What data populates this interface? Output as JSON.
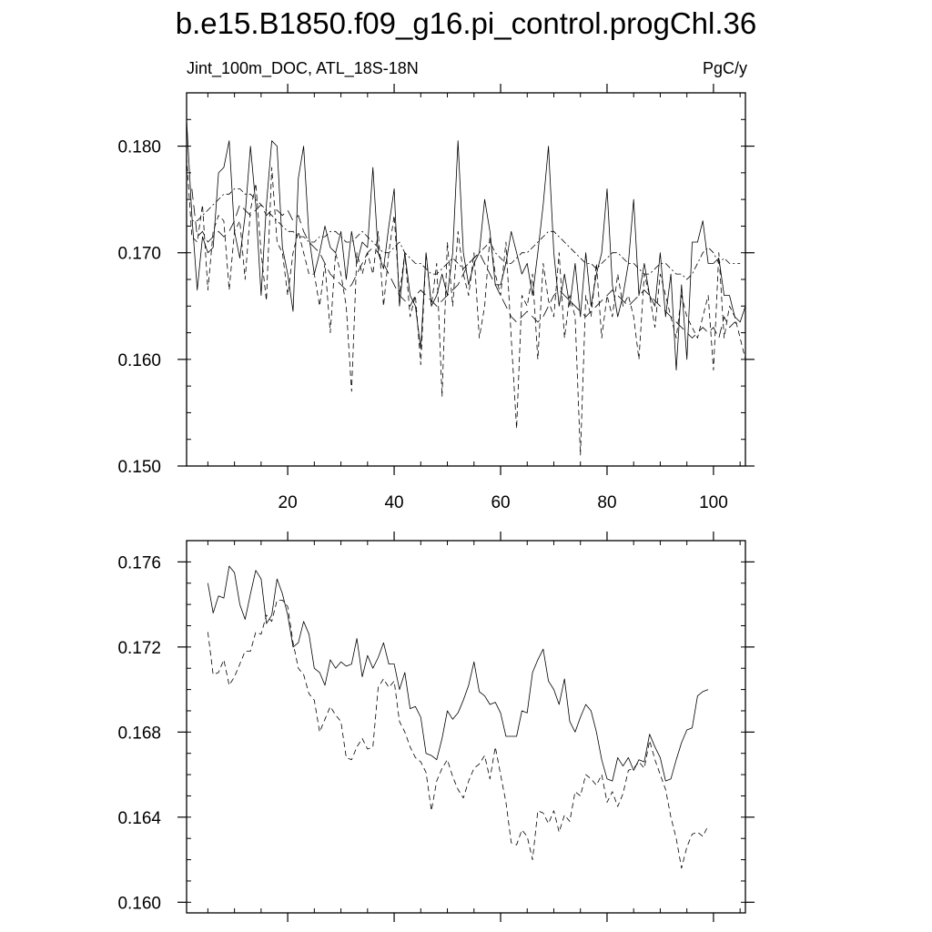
{
  "title": "b.e15.B1850.f09_g16.pi_control.progChl.36",
  "left_label": "Jint_100m_DOC, ATL_18S-18N",
  "right_label": "PgC/y",
  "chart_data": [
    {
      "type": "line",
      "xlim": [
        1,
        106
      ],
      "ylim": [
        0.15,
        0.185
      ],
      "x_ticks": [
        20,
        40,
        60,
        80,
        100
      ],
      "y_ticks": [
        0.15,
        0.16,
        0.17,
        0.18
      ],
      "y_tick_labels": [
        "0.150",
        "0.160",
        "0.170",
        "0.180"
      ],
      "x_tick_labels": [
        "20",
        "40",
        "60",
        "80",
        "100"
      ],
      "grid": false,
      "series": [
        {
          "style": "solid",
          "x_start": 1,
          "values": [
            0.1825,
            0.1735,
            0.1665,
            0.1715,
            0.17,
            0.1705,
            0.1775,
            0.178,
            0.1805,
            0.172,
            0.1695,
            0.1735,
            0.18,
            0.1745,
            0.166,
            0.1745,
            0.1805,
            0.18,
            0.1705,
            0.168,
            0.1645,
            0.177,
            0.18,
            0.1715,
            0.168,
            0.17,
            0.1725,
            0.1705,
            0.17,
            0.172,
            0.1675,
            0.172,
            0.169,
            0.171,
            0.1705,
            0.178,
            0.17,
            0.1685,
            0.1725,
            0.176,
            0.165,
            0.17,
            0.166,
            0.165,
            0.161,
            0.17,
            0.165,
            0.166,
            0.168,
            0.166,
            0.17,
            0.1805,
            0.17,
            0.167,
            0.169,
            0.17,
            0.175,
            0.172,
            0.167,
            0.167,
            0.169,
            0.172,
            0.17,
            0.168,
            0.169,
            0.166,
            0.17,
            0.1745,
            0.18,
            0.17,
            0.165,
            0.168,
            0.165,
            0.169,
            0.164,
            0.17,
            0.165,
            0.168,
            0.17,
            0.176,
            0.167,
            0.164,
            0.166,
            0.169,
            0.175,
            0.166,
            0.169,
            0.166,
            0.165,
            0.17,
            0.164,
            0.168,
            0.159,
            0.167,
            0.16,
            0.171,
            0.171,
            0.173,
            0.169,
            0.169,
            0.1695,
            0.166,
            0.166,
            0.164,
            0.1635,
            0.165
          ]
        },
        {
          "style": "dashed",
          "x_start": 1,
          "values": [
            0.179,
            0.1715,
            0.171,
            0.1745,
            0.1665,
            0.172,
            0.1735,
            0.173,
            0.1665,
            0.172,
            0.173,
            0.1675,
            0.174,
            0.1765,
            0.17,
            0.1655,
            0.178,
            0.171,
            0.17,
            0.166,
            0.17,
            0.172,
            0.17,
            0.168,
            0.168,
            0.165,
            0.169,
            0.1625,
            0.17,
            0.168,
            0.165,
            0.157,
            0.17,
            0.168,
            0.17,
            0.168,
            0.172,
            0.165,
            0.17,
            0.1735,
            0.166,
            0.17,
            0.164,
            0.166,
            0.1595,
            0.17,
            0.165,
            0.169,
            0.1565,
            0.171,
            0.165,
            0.172,
            0.168,
            0.166,
            0.17,
            0.162,
            0.165,
            0.1715,
            0.168,
            0.166,
            0.171,
            0.162,
            0.1535,
            0.166,
            0.165,
            0.168,
            0.16,
            0.169,
            0.1655,
            0.164,
            0.17,
            0.162,
            0.166,
            0.164,
            0.151,
            0.166,
            0.164,
            0.169,
            0.162,
            0.166,
            0.164,
            0.168,
            0.165,
            0.166,
            0.164,
            0.16,
            0.168,
            0.166,
            0.163,
            0.168,
            0.166,
            0.164,
            0.162,
            0.166,
            0.164,
            0.163,
            0.162,
            0.164,
            0.166,
            0.159,
            0.17,
            0.162,
            0.165,
            0.164,
            0.162,
            0.16
          ]
        },
        {
          "style": "long-dash",
          "x_start": 2,
          "values": [
            0.176,
            0.1715,
            0.172,
            0.171,
            0.1715,
            0.172,
            0.1715,
            0.172,
            0.173,
            0.1745,
            0.174,
            0.1735,
            0.174,
            0.1745,
            0.1735,
            0.174,
            0.174,
            0.1735,
            0.174,
            0.173,
            0.1735,
            0.172,
            0.171,
            0.1705,
            0.17,
            0.169,
            0.168,
            0.1675,
            0.167,
            0.1665,
            0.167,
            0.168,
            0.169,
            0.17,
            0.1705,
            0.17,
            0.169,
            0.168,
            0.167,
            0.166,
            0.1655,
            0.165,
            0.166,
            0.1665,
            0.166,
            0.1655,
            0.165,
            0.1655,
            0.166,
            0.1665,
            0.167,
            0.168,
            0.169,
            0.1695,
            0.17,
            0.169,
            0.168,
            0.167,
            0.166,
            0.165,
            0.164,
            0.1635,
            0.164,
            0.1645,
            0.164,
            0.1635,
            0.164,
            0.165,
            0.166,
            0.1665,
            0.166,
            0.1655,
            0.165,
            0.1645,
            0.164,
            0.1645,
            0.165,
            0.1655,
            0.166,
            0.1665,
            0.166,
            0.1655,
            0.165,
            0.1655,
            0.166,
            0.1665,
            0.166,
            0.1655,
            0.165,
            0.1645,
            0.164,
            0.1635,
            0.163,
            0.1625,
            0.162,
            0.1625,
            0.163,
            0.1625,
            0.163,
            0.162,
            0.164,
            0.163,
            0.1635,
            0.163
          ]
        },
        {
          "style": "dash-dot",
          "x_start": 2,
          "values": [
            0.173,
            0.173,
            0.1735,
            0.174,
            0.1745,
            0.175,
            0.1755,
            0.1755,
            0.176,
            0.176,
            0.1755,
            0.1755,
            0.175,
            0.1745,
            0.174,
            0.1735,
            0.173,
            0.1725,
            0.172,
            0.172,
            0.1715,
            0.1715,
            0.171,
            0.171,
            0.1715,
            0.1715,
            0.172,
            0.172,
            0.1715,
            0.171,
            0.171,
            0.1715,
            0.172,
            0.1715,
            0.171,
            0.1705,
            0.17,
            0.17,
            0.1705,
            0.171,
            0.17,
            0.1695,
            0.169,
            0.169,
            0.1685,
            0.168,
            0.168,
            0.1685,
            0.169,
            0.1695,
            0.169,
            0.1685,
            0.169,
            0.1695,
            0.17,
            0.1705,
            0.171,
            0.17,
            0.1695,
            0.169,
            0.169,
            0.1695,
            0.17,
            0.17,
            0.1705,
            0.171,
            0.1715,
            0.172,
            0.172,
            0.1715,
            0.171,
            0.1705,
            0.17,
            0.1695,
            0.169,
            0.169,
            0.1685,
            0.169,
            0.1695,
            0.17,
            0.17,
            0.1695,
            0.169,
            0.169,
            0.1685,
            0.168,
            0.168,
            0.1685,
            0.169,
            0.169,
            0.1685,
            0.168,
            0.168,
            0.1675,
            0.168,
            0.169,
            0.17,
            0.1705,
            0.17,
            0.169,
            0.1695,
            0.169,
            0.169,
            0.169
          ]
        }
      ]
    },
    {
      "type": "line",
      "xlim": [
        1,
        106
      ],
      "ylim": [
        0.1595,
        0.177
      ],
      "x_ticks": [
        20,
        40,
        60,
        80,
        100
      ],
      "y_ticks": [
        0.16,
        0.164,
        0.168,
        0.172,
        0.176
      ],
      "y_tick_labels": [
        "0.160",
        "0.164",
        "0.168",
        "0.172",
        "0.176"
      ],
      "grid": false,
      "series": [
        {
          "style": "solid",
          "x_start": 5,
          "values": [
            0.175,
            0.1736,
            0.1744,
            0.1743,
            0.1758,
            0.1755,
            0.174,
            0.1733,
            0.1745,
            0.1756,
            0.1752,
            0.1731,
            0.1735,
            0.1752,
            0.1745,
            0.1735,
            0.172,
            0.1722,
            0.1732,
            0.1726,
            0.171,
            0.1708,
            0.1702,
            0.1714,
            0.171,
            0.1713,
            0.1711,
            0.1712,
            0.1724,
            0.1706,
            0.1716,
            0.171,
            0.1715,
            0.1722,
            0.1712,
            0.1712,
            0.17,
            0.1708,
            0.1691,
            0.1692,
            0.1687,
            0.167,
            0.1669,
            0.1667,
            0.1677,
            0.169,
            0.1686,
            0.1689,
            0.1695,
            0.1702,
            0.1713,
            0.1699,
            0.1697,
            0.1693,
            0.1694,
            0.1689,
            0.1678,
            0.1678,
            0.1678,
            0.169,
            0.1689,
            0.1708,
            0.1714,
            0.1719,
            0.1704,
            0.17,
            0.1693,
            0.1705,
            0.1685,
            0.168,
            0.1687,
            0.1693,
            0.169,
            0.168,
            0.1667,
            0.1658,
            0.1657,
            0.1668,
            0.1664,
            0.1668,
            0.1662,
            0.1667,
            0.1666,
            0.1679,
            0.1673,
            0.1668,
            0.1657,
            0.1658,
            0.1667,
            0.1675,
            0.1681,
            0.1682,
            0.1697,
            0.1699,
            0.17
          ]
        },
        {
          "style": "dashed",
          "x_start": 5,
          "values": [
            0.1727,
            0.1707,
            0.1708,
            0.1714,
            0.1702,
            0.1706,
            0.1712,
            0.1718,
            0.1718,
            0.1727,
            0.1726,
            0.1735,
            0.1732,
            0.1742,
            0.1742,
            0.1739,
            0.1722,
            0.171,
            0.1707,
            0.1698,
            0.1695,
            0.168,
            0.1686,
            0.1692,
            0.1688,
            0.1685,
            0.1668,
            0.1667,
            0.1673,
            0.1677,
            0.1672,
            0.1673,
            0.1701,
            0.1705,
            0.1701,
            0.1704,
            0.1685,
            0.168,
            0.1673,
            0.1668,
            0.1666,
            0.1661,
            0.1643,
            0.1657,
            0.1663,
            0.1667,
            0.1659,
            0.1653,
            0.1649,
            0.1657,
            0.1663,
            0.1665,
            0.1669,
            0.1658,
            0.1673,
            0.166,
            0.1647,
            0.1628,
            0.1627,
            0.1634,
            0.1631,
            0.162,
            0.1643,
            0.1642,
            0.1637,
            0.1643,
            0.1633,
            0.1641,
            0.1638,
            0.1652,
            0.165,
            0.166,
            0.1658,
            0.1655,
            0.166,
            0.1647,
            0.1652,
            0.1645,
            0.1651,
            0.1662,
            0.1663,
            0.1666,
            0.1663,
            0.1676,
            0.1667,
            0.166,
            0.1653,
            0.164,
            0.163,
            0.1616,
            0.1626,
            0.1632,
            0.1633,
            0.1631,
            0.1636
          ]
        }
      ]
    }
  ]
}
